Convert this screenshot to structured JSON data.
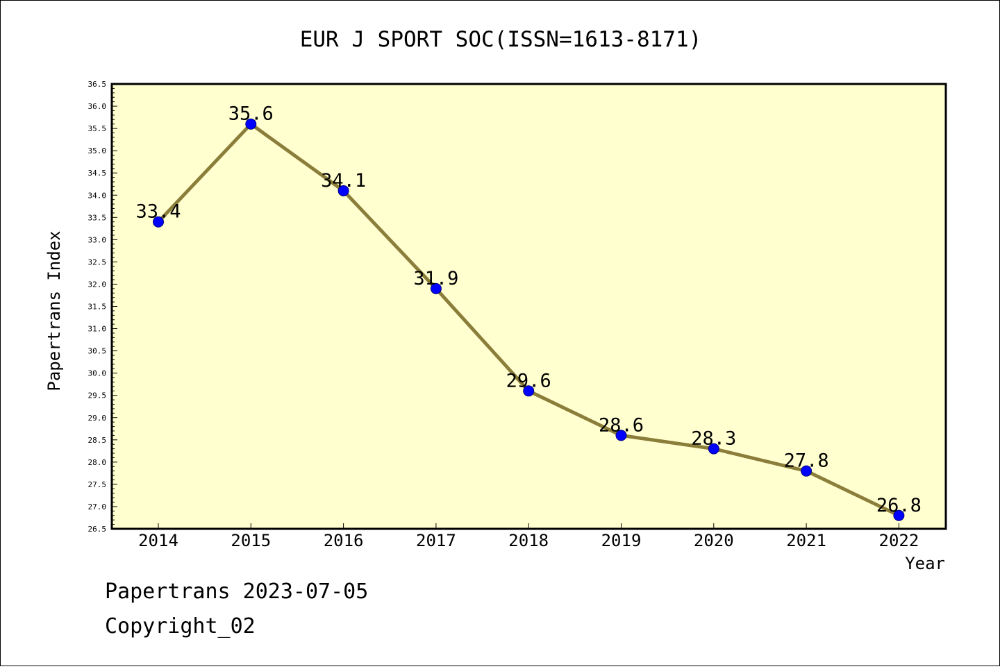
{
  "chart_data": {
    "type": "line",
    "title": "EUR J SPORT SOC(ISSN=1613-8171)",
    "xlabel": "Year",
    "ylabel": "Papertrans Index",
    "categories": [
      "2014",
      "2015",
      "2016",
      "2017",
      "2018",
      "2019",
      "2020",
      "2021",
      "2022"
    ],
    "series": [
      {
        "values": [
          33.4,
          35.6,
          34.1,
          31.9,
          29.6,
          28.6,
          28.3,
          27.8,
          26.8
        ]
      }
    ],
    "data_labels": [
      "33.4",
      "35.6",
      "34.1",
      "31.9",
      "29.6",
      "28.6",
      "28.3",
      "27.8",
      "26.8"
    ],
    "ylim": [
      26.5,
      36.5
    ],
    "yticks": [
      "26.5",
      "27.0",
      "27.5",
      "28.0",
      "28.5",
      "29.0",
      "29.5",
      "30.0",
      "30.5",
      "31.0",
      "31.5",
      "32.0",
      "32.5",
      "33.0",
      "33.5",
      "34.0",
      "34.5",
      "35.0",
      "35.5",
      "36.0",
      "36.5"
    ],
    "grid": false,
    "colors": {
      "plot_background": "#ffffd0",
      "line": "#8b7d3a",
      "marker_fill": "#0000ff",
      "marker_stroke": "#000080"
    }
  },
  "footer": {
    "line1": "Papertrans 2023-07-05",
    "line2": "Copyright_02"
  }
}
